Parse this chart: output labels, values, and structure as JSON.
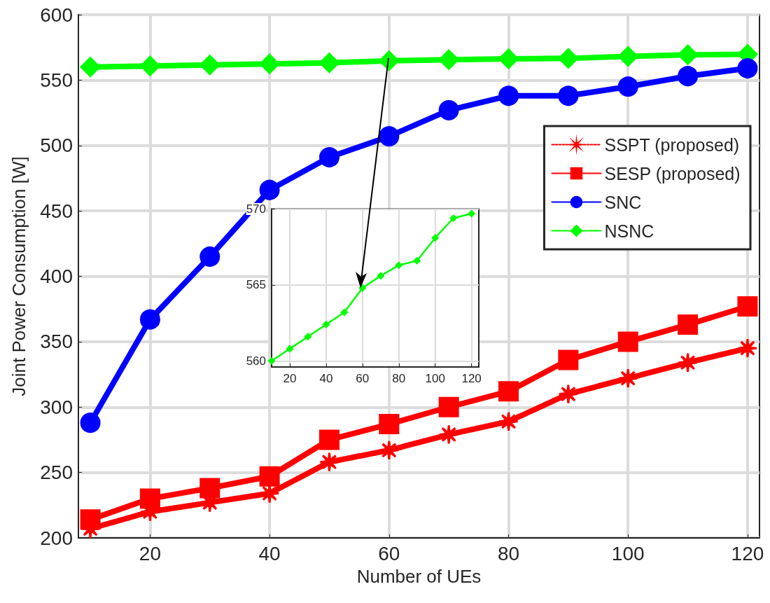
{
  "chart_data": [
    {
      "type": "line",
      "xlabel": "Number of UEs",
      "ylabel": "Joint Power Consumption [W]",
      "x": [
        10,
        20,
        30,
        40,
        50,
        60,
        70,
        80,
        90,
        100,
        110,
        120
      ],
      "xlim": [
        8,
        122
      ],
      "xticks": [
        20,
        40,
        60,
        80,
        100,
        120
      ],
      "ylim": [
        200,
        600
      ],
      "yticks": [
        200,
        250,
        300,
        350,
        400,
        450,
        500,
        550,
        600
      ],
      "grid": true,
      "legend": "top right",
      "series": [
        {
          "name": "SSPT (proposed)",
          "color": "#ff0000",
          "marker": "star",
          "line_style": "dashed",
          "values": [
            207,
            220,
            227,
            234,
            258,
            267,
            279,
            289,
            310,
            322,
            334,
            345
          ]
        },
        {
          "name": "SESP (proposed)",
          "color": "#ff0000",
          "marker": "square",
          "line_style": "solid",
          "values": [
            214,
            230,
            238,
            247,
            275,
            287,
            300,
            312,
            336,
            350,
            363,
            377
          ]
        },
        {
          "name": "SNC",
          "color": "#0000ff",
          "marker": "circle",
          "line_style": "solid",
          "values": [
            288,
            367,
            415,
            466,
            491,
            507,
            527,
            538,
            538,
            545,
            553,
            559
          ]
        },
        {
          "name": "NSNC",
          "color": "#00ff00",
          "marker": "diamond",
          "line_style": "solid",
          "values": [
            560.0,
            560.8,
            561.6,
            562.4,
            563.2,
            564.8,
            565.6,
            566.3,
            566.6,
            568.1,
            569.4,
            569.7
          ]
        }
      ]
    },
    {
      "type": "line",
      "x": [
        10,
        20,
        30,
        40,
        50,
        60,
        70,
        80,
        90,
        100,
        110,
        120
      ],
      "xlim": [
        10,
        124
      ],
      "xticks": [
        20,
        40,
        60,
        80,
        100,
        120
      ],
      "ylim": [
        559.6,
        570
      ],
      "yticks": [
        560,
        565,
        570
      ],
      "grid": true,
      "series": [
        {
          "color": "#00ff00",
          "marker": "diamond",
          "line_style": "solid",
          "values": [
            560.0,
            560.8,
            561.6,
            562.4,
            563.2,
            564.8,
            565.6,
            566.3,
            566.6,
            568.1,
            569.4,
            569.7
          ]
        }
      ]
    }
  ]
}
